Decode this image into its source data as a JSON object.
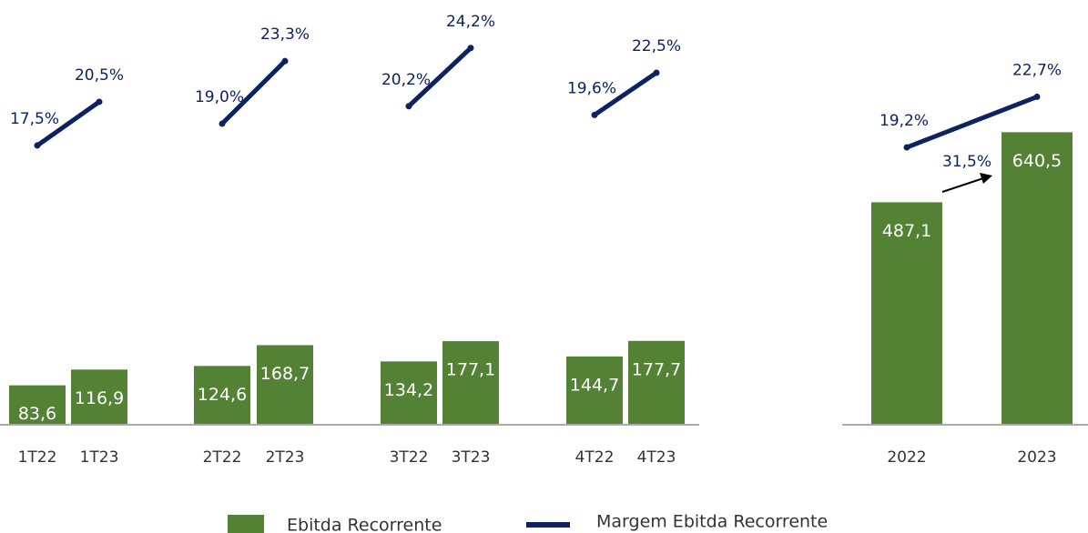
{
  "chart_data": [
    {
      "type": "bar",
      "categories": [
        "1T22",
        "1T23",
        "2T22",
        "2T23",
        "3T22",
        "3T23",
        "4T22",
        "4T23"
      ],
      "series": [
        {
          "name": "Ebitda Recorrente",
          "color": "#548235",
          "values": [
            83.6,
            116.9,
            124.6,
            168.7,
            134.2,
            177.1,
            144.7,
            177.7
          ],
          "value_labels": [
            "83,6",
            "116,9",
            "124,6",
            "168,7",
            "134,2",
            "177,1",
            "144,7",
            "177,7"
          ]
        },
        {
          "name": "Margem Ebitda Recorrente",
          "color": "#0d2260",
          "axis": "y2",
          "values": [
            17.5,
            20.5,
            19.0,
            23.3,
            20.2,
            24.2,
            19.6,
            22.5
          ],
          "value_labels": [
            "17,5%",
            "20,5%",
            "19,0%",
            "23,3%",
            "20,2%",
            "24,2%",
            "19,6%",
            "22,5%"
          ]
        }
      ],
      "ylim": [
        0,
        900
      ],
      "y2lim": [
        -1.7,
        27.5
      ]
    },
    {
      "type": "bar",
      "categories": [
        "2022",
        "2023"
      ],
      "series": [
        {
          "color": "#548235",
          "values": [
            487.1,
            640.5
          ],
          "value_labels": [
            "487,1",
            "640,5"
          ]
        },
        {
          "color": "#0d2260",
          "axis": "y2",
          "values": [
            19.2,
            22.7
          ],
          "value_labels": [
            "19,2%",
            "22,7%"
          ]
        }
      ],
      "ylim": [
        0,
        930
      ],
      "y2lim": [
        0,
        29.4
      ],
      "annotation": "31,5%"
    }
  ]
}
